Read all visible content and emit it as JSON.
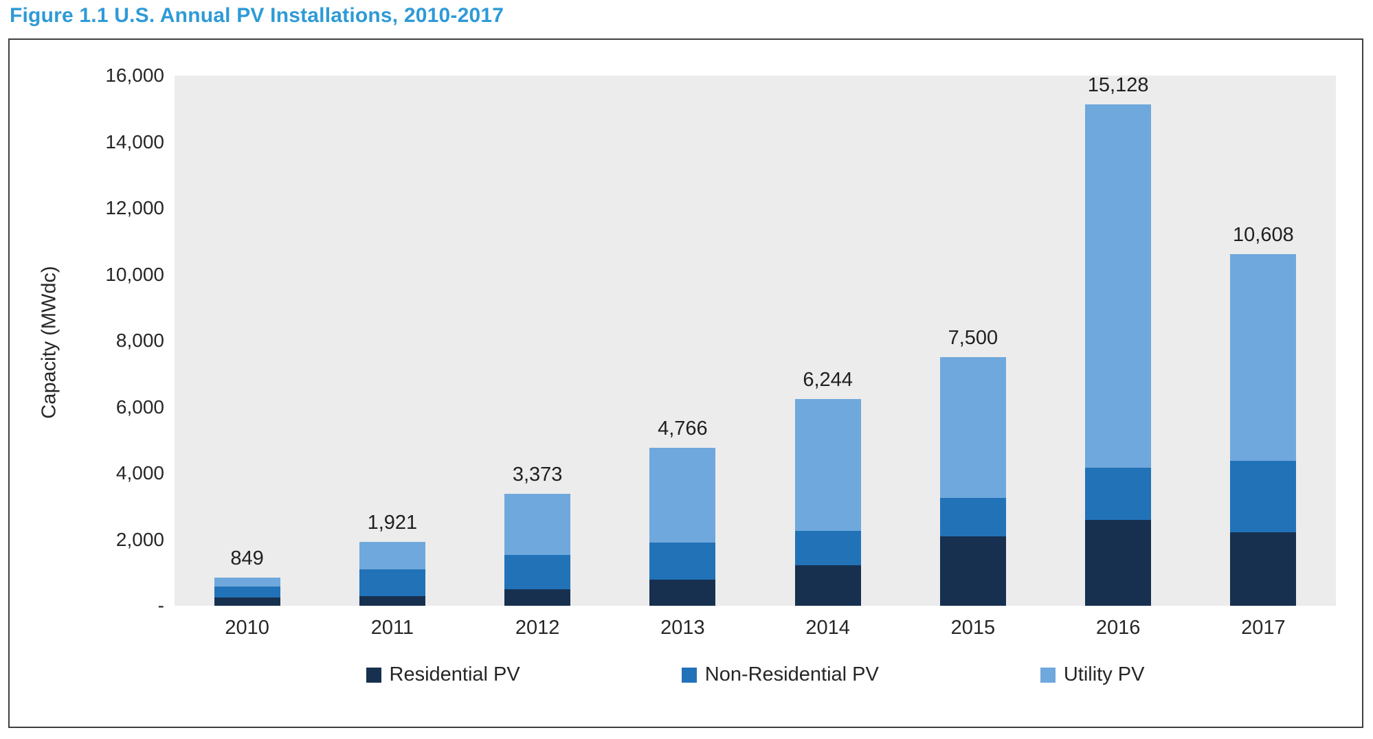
{
  "title": "Figure 1.1 U.S. Annual PV Installations, 2010-2017",
  "chart_data": {
    "type": "bar",
    "stacked": true,
    "title": "Figure 1.1 U.S. Annual PV Installations, 2010-2017",
    "xlabel": "",
    "ylabel": "Capacity (MWdc)",
    "ylim": [
      0,
      16000
    ],
    "grid": false,
    "legend_position": "bottom",
    "plot_background": "#ECECEC",
    "categories": [
      "2010",
      "2011",
      "2012",
      "2013",
      "2014",
      "2015",
      "2016",
      "2017"
    ],
    "y_ticks": [
      16000,
      14000,
      12000,
      10000,
      8000,
      6000,
      4000,
      2000,
      0
    ],
    "y_tick_labels": [
      "16,000",
      "14,000",
      "12,000",
      "10,000",
      "8,000",
      "6,000",
      "4,000",
      "2,000",
      "-"
    ],
    "series": [
      {
        "name": "Residential PV",
        "color": "#17304F",
        "values": [
          246,
          298,
          494,
          792,
          1231,
          2099,
          2583,
          2227
        ]
      },
      {
        "name": "Non-Residential PV",
        "color": "#2272B8",
        "values": [
          341,
          804,
          1043,
          1112,
          1036,
          1151,
          1586,
          2147
        ]
      },
      {
        "name": "Utility PV",
        "color": "#6FA8DC",
        "values": [
          262,
          819,
          1836,
          2862,
          3977,
          4250,
          10959,
          6234
        ]
      }
    ],
    "totals": [
      849,
      1921,
      3373,
      4766,
      6244,
      7500,
      15128,
      10608
    ],
    "totals_display": [
      "849",
      "1,921",
      "3,373",
      "4,766",
      "6,244",
      "7,500",
      "15,128",
      "10,608"
    ]
  },
  "colors": {
    "title": "#2E9AD6",
    "frame_border": "#3f3f3f",
    "text": "#262626"
  }
}
